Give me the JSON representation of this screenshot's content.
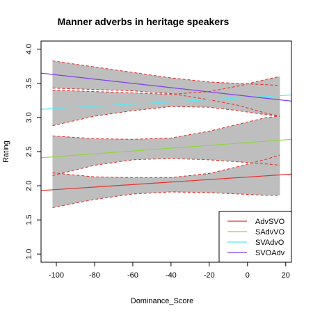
{
  "chart_data": {
    "type": "line",
    "title": "Manner adverbs in heritage speakers",
    "xlabel": "Dominance_Score",
    "ylabel": "Rating",
    "xlim": [
      -108,
      23
    ],
    "ylim": [
      0.88,
      4.12
    ],
    "xticks": [
      -100,
      -80,
      -60,
      -40,
      -20,
      0,
      20
    ],
    "yticks": [
      1.0,
      1.5,
      2.0,
      2.5,
      3.0,
      3.5,
      4.0
    ],
    "legend_position": "bottom-right",
    "band_x": [
      -102,
      -80,
      -60,
      -40,
      -20,
      -5,
      10,
      17
    ],
    "series": [
      {
        "name": "AdvSVO",
        "color": "#e3322e",
        "line": [
          [
            -108,
            1.93
          ],
          [
            23,
            2.17
          ]
        ],
        "upper": [
          2.19,
          2.13,
          2.12,
          2.12,
          2.18,
          2.28,
          2.39,
          2.45
        ],
        "lower": [
          1.68,
          1.8,
          1.88,
          1.91,
          1.9,
          1.88,
          1.86,
          1.86
        ]
      },
      {
        "name": "SAdvVO",
        "color": "#90d543",
        "line": [
          [
            -108,
            2.41
          ],
          [
            23,
            2.68
          ]
        ],
        "upper": [
          2.73,
          2.69,
          2.68,
          2.7,
          2.8,
          2.9,
          3.0,
          3.02
        ],
        "lower": [
          2.15,
          2.3,
          2.38,
          2.4,
          2.38,
          2.35,
          2.32,
          2.3
        ]
      },
      {
        "name": "SVAdvO",
        "color": "#5ce8f2",
        "line": [
          [
            -108,
            3.12
          ],
          [
            23,
            3.33
          ]
        ],
        "upper": [
          3.4,
          3.38,
          3.36,
          3.34,
          3.38,
          3.46,
          3.56,
          3.6
        ],
        "lower": [
          2.88,
          3.02,
          3.1,
          3.16,
          3.15,
          3.1,
          3.04,
          3.02
        ]
      },
      {
        "name": "SVOAdv",
        "color": "#7e3fe6",
        "line": [
          [
            -108,
            3.65
          ],
          [
            23,
            3.24
          ]
        ],
        "upper": [
          3.83,
          3.74,
          3.66,
          3.58,
          3.52,
          3.5,
          3.48,
          3.47
        ],
        "lower": [
          3.43,
          3.41,
          3.39,
          3.35,
          3.26,
          3.18,
          3.06,
          3.02
        ]
      }
    ]
  }
}
